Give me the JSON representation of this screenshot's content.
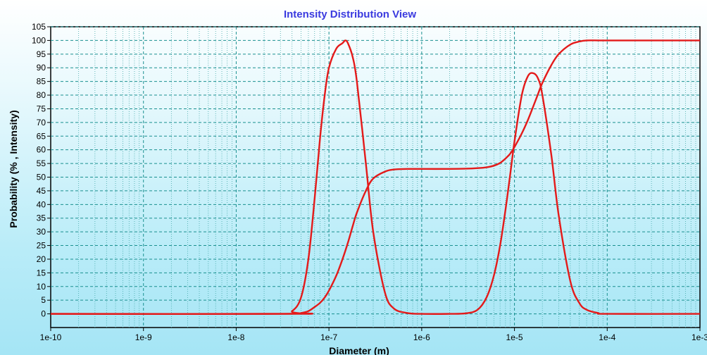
{
  "chart_data": {
    "type": "line",
    "title": "Intensity Distribution View",
    "xlabel": "Diameter (m)",
    "ylabel": "Probability (% , Intensity)",
    "x_scale": "log",
    "xlim": [
      1e-10,
      0.001
    ],
    "ylim": [
      -5,
      105
    ],
    "x_tick_labels": [
      "1e-10",
      "1e-9",
      "1e-8",
      "1e-7",
      "1e-6",
      "1e-5",
      "1e-4",
      "1e-3"
    ],
    "y_ticks": [
      0,
      5,
      10,
      15,
      20,
      25,
      30,
      35,
      40,
      45,
      50,
      55,
      60,
      65,
      70,
      75,
      80,
      85,
      90,
      95,
      100,
      105
    ],
    "grid": true,
    "legend": "none",
    "line_color": "#e41a1a",
    "series": [
      {
        "x": [
          1e-10,
          3e-08,
          4e-08,
          5e-08,
          6e-08,
          7e-08,
          8e-08,
          9e-08,
          1e-07,
          1.2e-07,
          1.4e-07,
          1.5e-07,
          1.6e-07,
          1.8e-07,
          2e-07,
          2.5e-07,
          3e-07,
          4e-07,
          5e-07,
          7e-07,
          1e-06,
          2e-06,
          3e-06,
          4e-06,
          5e-06,
          6e-06,
          7e-06,
          8e-06,
          9e-06,
          1e-05,
          1.2e-05,
          1.4e-05,
          1.6e-05,
          1.8e-05,
          2e-05,
          2.5e-05,
          3e-05,
          4e-05,
          5e-05,
          6e-05,
          8e-05,
          0.0001,
          0.001
        ],
        "y": [
          0,
          0,
          1,
          6,
          20,
          42,
          64,
          80,
          90,
          97,
          99,
          100,
          99,
          94,
          85,
          55,
          30,
          8,
          2,
          0.3,
          0,
          0,
          0.2,
          1.5,
          6,
          14,
          25,
          38,
          51,
          63,
          80,
          87,
          88,
          86,
          80,
          58,
          36,
          12,
          4,
          1.5,
          0.3,
          0,
          0
        ]
      },
      {
        "x": [
          1e-10,
          4e-08,
          5e-08,
          6e-08,
          7e-08,
          8e-08,
          9e-08,
          1e-07,
          1.2e-07,
          1.4e-07,
          1.6e-07,
          1.8e-07,
          2e-07,
          2.5e-07,
          3e-07,
          4e-07,
          5e-07,
          7e-07,
          1e-06,
          2e-06,
          3e-06,
          4e-06,
          5e-06,
          6e-06,
          7e-06,
          8e-06,
          9e-06,
          1e-05,
          1.2e-05,
          1.4e-05,
          1.6e-05,
          1.8e-05,
          2e-05,
          2.5e-05,
          3e-05,
          4e-05,
          5e-05,
          6e-05,
          8e-05,
          0.0001,
          0.001
        ],
        "y": [
          0,
          0,
          0.3,
          1,
          2.5,
          4,
          6,
          8.5,
          14,
          20,
          26,
          32,
          37,
          45,
          49.5,
          52,
          52.8,
          53,
          53,
          53,
          53.1,
          53.3,
          53.6,
          54.2,
          55.2,
          56.8,
          58.6,
          61,
          66,
          71,
          76,
          80.5,
          84.5,
          91,
          95,
          98.5,
          99.6,
          100,
          100,
          100,
          100
        ]
      }
    ]
  }
}
